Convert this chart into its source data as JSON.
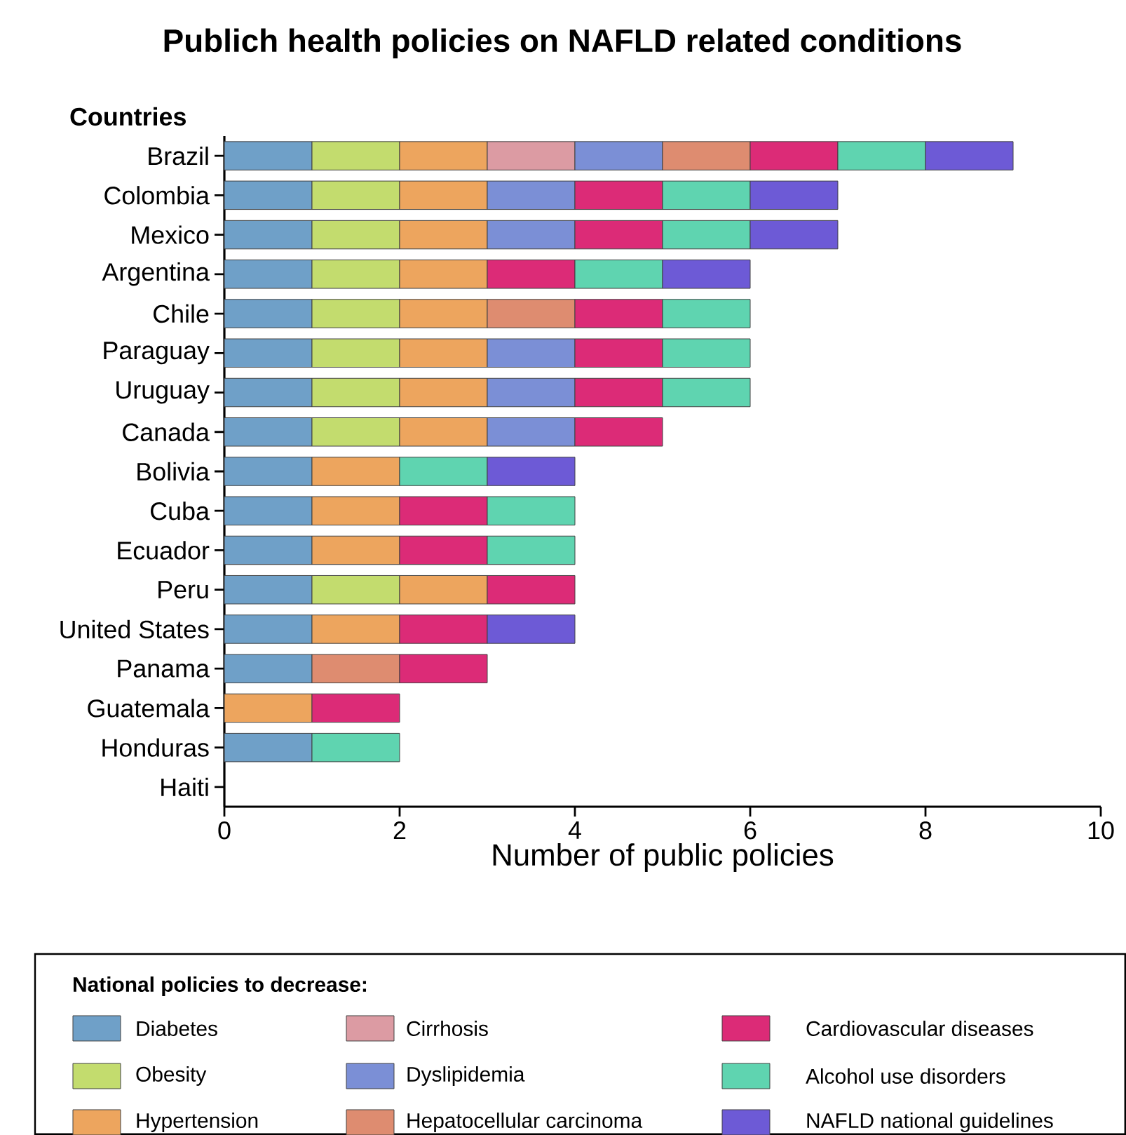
{
  "chart_data": {
    "type": "bar",
    "orientation": "horizontal",
    "stacked": true,
    "title": "Publich health policies on NAFLD related conditions",
    "xlabel": "Number of public policies",
    "ylabel": "Countries",
    "legend_title": "National policies to decrease:",
    "legend": "bottom",
    "xlim": [
      0,
      10
    ],
    "xticks": [
      0,
      2,
      4,
      6,
      8,
      10
    ],
    "categories": [
      "Brazil",
      "Colombia",
      "Mexico",
      "Argentina",
      "Chile",
      "Paraguay",
      "Uruguay",
      "Canada",
      "Bolivia",
      "Cuba",
      "Ecuador",
      "Peru",
      "United States",
      "Panama",
      "Guatemala",
      "Honduras",
      "Haiti"
    ],
    "series": [
      {
        "name": "Diabetes",
        "color": "#6fa0c8",
        "values": [
          1,
          1,
          1,
          1,
          1,
          1,
          1,
          1,
          1,
          1,
          1,
          1,
          1,
          1,
          null,
          1,
          null
        ]
      },
      {
        "name": "Obesity",
        "color": "#c3dc6e",
        "values": [
          1,
          1,
          1,
          1,
          1,
          1,
          1,
          1,
          null,
          null,
          null,
          1,
          null,
          null,
          null,
          null,
          null
        ]
      },
      {
        "name": "Hypertension",
        "color": "#eda55e",
        "values": [
          1,
          1,
          1,
          1,
          1,
          1,
          1,
          1,
          1,
          1,
          1,
          1,
          1,
          null,
          1,
          null,
          null
        ]
      },
      {
        "name": "Cirrhosis",
        "color": "#dc9ba3",
        "values": [
          1,
          null,
          null,
          null,
          null,
          null,
          null,
          null,
          null,
          null,
          null,
          null,
          null,
          null,
          null,
          null,
          null
        ]
      },
      {
        "name": "Dyslipidemia",
        "color": "#7b8fd6",
        "values": [
          1,
          1,
          1,
          null,
          null,
          1,
          1,
          1,
          null,
          null,
          null,
          null,
          null,
          null,
          null,
          null,
          null
        ]
      },
      {
        "name": "Hepatocellular carcinoma",
        "color": "#de8c70",
        "values": [
          1,
          null,
          null,
          null,
          1,
          null,
          null,
          null,
          null,
          null,
          null,
          null,
          null,
          1,
          null,
          null,
          null
        ]
      },
      {
        "name": "Cardiovascular diseases",
        "color": "#dc2b77",
        "values": [
          1,
          1,
          1,
          1,
          1,
          1,
          1,
          1,
          null,
          1,
          1,
          1,
          1,
          1,
          1,
          null,
          null
        ]
      },
      {
        "name": "Alcohol use disorders",
        "color": "#5fd4b0",
        "values": [
          1,
          1,
          1,
          1,
          1,
          1,
          1,
          null,
          1,
          1,
          1,
          null,
          null,
          null,
          null,
          1,
          null
        ]
      },
      {
        "name": "NAFLD national guidelines",
        "color": "#6d5ad6",
        "values": [
          1,
          1,
          1,
          1,
          null,
          null,
          null,
          null,
          1,
          null,
          null,
          null,
          1,
          null,
          null,
          null,
          null
        ]
      }
    ]
  }
}
